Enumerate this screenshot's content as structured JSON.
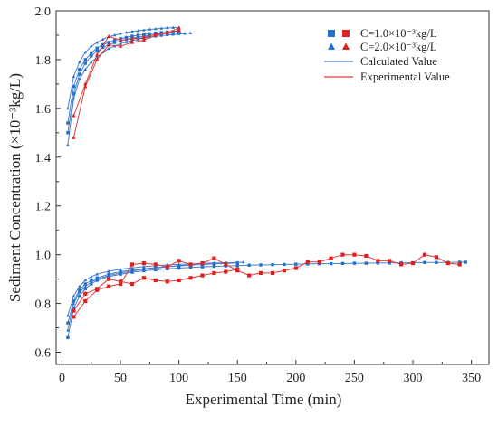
{
  "chart_data": {
    "type": "line",
    "title": "",
    "xlabel": "Experimental Time (min)",
    "ylabel": "Sediment Concentration (×10⁻³kg/L)",
    "xlim": [
      -5,
      365
    ],
    "ylim": [
      0.55,
      2.0
    ],
    "x_ticks": [
      "0",
      "50",
      "100",
      "150",
      "200",
      "250",
      "300",
      "350"
    ],
    "x_tick_values": [
      0,
      50,
      100,
      150,
      200,
      250,
      300,
      350
    ],
    "y_ticks": [
      "0.6",
      "0.8",
      "1.0",
      "1.2",
      "1.4",
      "1.6",
      "1.8",
      "2.0"
    ],
    "y_tick_values": [
      0.6,
      0.8,
      1.0,
      1.2,
      1.4,
      1.6,
      1.8,
      2.0
    ],
    "grid": false,
    "legend_position": "top-right",
    "legend": [
      {
        "marker": "square",
        "text": "C=1.0×10⁻³kg/L"
      },
      {
        "marker": "triangle",
        "text": "C=2.0×10⁻³kg/L"
      },
      {
        "line_color": "#4a80c8",
        "text": "Calculated Value"
      },
      {
        "line_color": "#e03b3b",
        "text": "Experimental Value"
      }
    ],
    "colors": {
      "calculated": "#1f6fce",
      "experimental": "#e02020"
    },
    "series": [
      {
        "group": "calculated",
        "marker": "square",
        "x": [
          5,
          10,
          15,
          20,
          25,
          30,
          40,
          50,
          60,
          70,
          80,
          90,
          100,
          110,
          120,
          130,
          140,
          150,
          160,
          170,
          180,
          190,
          200,
          210,
          220,
          230,
          240,
          250,
          260,
          270,
          280,
          290,
          300,
          310,
          320,
          330,
          340,
          345
        ],
        "y": [
          0.66,
          0.78,
          0.83,
          0.86,
          0.88,
          0.895,
          0.91,
          0.92,
          0.928,
          0.934,
          0.938,
          0.942,
          0.945,
          0.948,
          0.95,
          0.952,
          0.954,
          0.955,
          0.957,
          0.958,
          0.959,
          0.96,
          0.961,
          0.962,
          0.963,
          0.963,
          0.964,
          0.965,
          0.965,
          0.966,
          0.966,
          0.967,
          0.967,
          0.968,
          0.968,
          0.968,
          0.969,
          0.969
        ]
      },
      {
        "group": "calculated",
        "marker": "square",
        "x": [
          5,
          10,
          15,
          20,
          25,
          30,
          40,
          50,
          60,
          70,
          80,
          90,
          100,
          110,
          120,
          130,
          140,
          150
        ],
        "y": [
          0.72,
          0.81,
          0.855,
          0.88,
          0.895,
          0.905,
          0.92,
          0.93,
          0.937,
          0.942,
          0.947,
          0.951,
          0.954,
          0.957,
          0.96,
          0.962,
          0.964,
          0.966
        ]
      },
      {
        "group": "calculated",
        "marker": "triangle",
        "x": [
          5,
          10,
          15,
          20,
          25,
          30,
          40,
          50,
          60,
          70,
          80,
          90,
          100,
          110,
          120,
          130,
          140,
          150,
          155
        ],
        "y": [
          0.75,
          0.83,
          0.87,
          0.895,
          0.91,
          0.92,
          0.932,
          0.94,
          0.946,
          0.951,
          0.955,
          0.958,
          0.96,
          0.962,
          0.964,
          0.966,
          0.967,
          0.968,
          0.969
        ]
      },
      {
        "group": "calculated",
        "marker": "triangle",
        "x": [
          5,
          10,
          15,
          20,
          25,
          30,
          40,
          50,
          60,
          70,
          80,
          90,
          100,
          110
        ],
        "y": [
          0.69,
          0.8,
          0.845,
          0.87,
          0.888,
          0.9,
          0.915,
          0.925,
          0.933,
          0.94,
          0.945,
          0.95,
          0.955,
          0.958
        ]
      },
      {
        "group": "calculated",
        "marker": "triangle",
        "x": [
          5,
          10,
          15,
          20,
          25,
          30,
          35,
          40,
          45,
          50,
          55,
          60,
          65,
          70,
          75,
          80,
          85,
          90,
          95,
          100,
          105,
          110
        ],
        "y": [
          1.45,
          1.64,
          1.72,
          1.76,
          1.79,
          1.81,
          1.83,
          1.845,
          1.855,
          1.865,
          1.872,
          1.878,
          1.883,
          1.888,
          1.892,
          1.895,
          1.898,
          1.901,
          1.903,
          1.905,
          1.907,
          1.909
        ]
      },
      {
        "group": "calculated",
        "marker": "triangle",
        "x": [
          5,
          10,
          15,
          20,
          25,
          30,
          35,
          40,
          45,
          50,
          55,
          60,
          65,
          70,
          75,
          80,
          85,
          90,
          95,
          100
        ],
        "y": [
          1.6,
          1.73,
          1.79,
          1.83,
          1.855,
          1.87,
          1.883,
          1.893,
          1.9,
          1.906,
          1.911,
          1.915,
          1.918,
          1.921,
          1.924,
          1.926,
          1.928,
          1.93,
          1.931,
          1.932
        ]
      },
      {
        "group": "calculated",
        "marker": "square",
        "x": [
          5,
          10,
          15,
          20,
          25,
          30,
          35,
          40,
          45,
          50,
          55,
          60,
          65,
          70,
          75,
          80,
          85,
          90,
          95,
          100
        ],
        "y": [
          1.5,
          1.66,
          1.74,
          1.785,
          1.815,
          1.835,
          1.85,
          1.861,
          1.87,
          1.877,
          1.883,
          1.888,
          1.892,
          1.896,
          1.899,
          1.902,
          1.905,
          1.907,
          1.909,
          1.911
        ]
      },
      {
        "group": "calculated",
        "marker": "square",
        "x": [
          5,
          10,
          15,
          20,
          25,
          30,
          35,
          40,
          45,
          50,
          55,
          60,
          65,
          70,
          75,
          80,
          85,
          90,
          95,
          100
        ],
        "y": [
          1.54,
          1.69,
          1.76,
          1.8,
          1.828,
          1.847,
          1.861,
          1.871,
          1.879,
          1.886,
          1.891,
          1.896,
          1.9,
          1.903,
          1.906,
          1.909,
          1.911,
          1.913,
          1.915,
          1.917
        ]
      },
      {
        "group": "experimental",
        "marker": "square",
        "x": [
          10,
          20,
          30,
          40,
          50,
          60,
          70,
          80,
          90,
          100,
          110,
          120,
          130,
          140,
          150,
          160,
          170,
          180,
          190,
          200,
          210,
          220,
          230,
          240,
          250,
          260,
          270,
          280,
          290,
          300,
          310,
          320,
          330,
          340
        ],
        "y": [
          0.745,
          0.81,
          0.855,
          0.87,
          0.88,
          0.96,
          0.965,
          0.96,
          0.95,
          0.975,
          0.96,
          0.965,
          0.985,
          0.96,
          0.935,
          0.915,
          0.925,
          0.925,
          0.935,
          0.945,
          0.97,
          0.97,
          0.985,
          1.0,
          1.0,
          0.995,
          0.975,
          0.975,
          0.96,
          0.965,
          1.0,
          0.99,
          0.965,
          0.96
        ]
      },
      {
        "group": "experimental",
        "marker": "square",
        "x": [
          10,
          20,
          30,
          40,
          50,
          60,
          70,
          80,
          90,
          100,
          110,
          120,
          130,
          140,
          150
        ],
        "y": [
          0.77,
          0.84,
          0.86,
          0.9,
          0.89,
          0.88,
          0.905,
          0.895,
          0.89,
          0.895,
          0.905,
          0.915,
          0.925,
          0.93,
          0.94
        ]
      },
      {
        "group": "experimental",
        "marker": "triangle",
        "x": [
          10,
          20,
          30,
          40,
          50,
          60,
          70,
          80,
          90,
          100
        ],
        "y": [
          1.48,
          1.69,
          1.8,
          1.86,
          1.855,
          1.87,
          1.88,
          1.9,
          1.91,
          1.92
        ]
      },
      {
        "group": "experimental",
        "marker": "triangle",
        "x": [
          10,
          20,
          30,
          40,
          50,
          60,
          70,
          80,
          90,
          100
        ],
        "y": [
          1.57,
          1.7,
          1.82,
          1.895,
          1.88,
          1.885,
          1.89,
          1.905,
          1.91,
          1.93
        ]
      }
    ]
  }
}
